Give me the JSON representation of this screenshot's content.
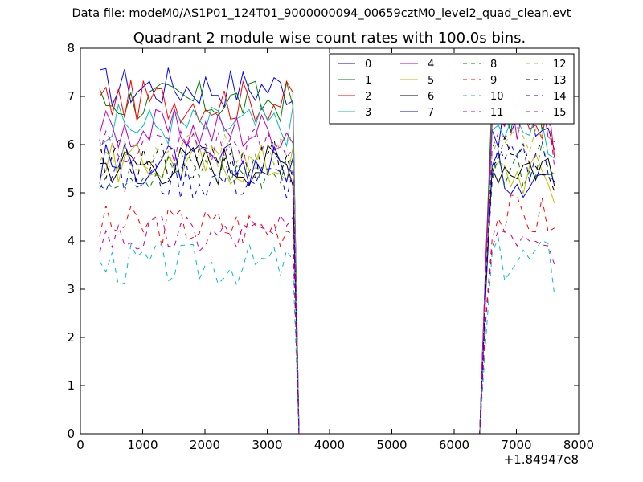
{
  "header": {
    "text": "Data file: modeM0/AS1P01_124T01_9000000094_00659cztM0_level2_quad_clean.evt"
  },
  "chart_data": {
    "type": "line",
    "title": "Quadrant 2 module wise count rates with 100.0s bins.",
    "xlabel": "",
    "ylabel": "",
    "xlim": [
      0,
      8000
    ],
    "ylim": [
      0,
      8
    ],
    "x_ticks": [
      "0",
      "1000",
      "2000",
      "3000",
      "4000",
      "5000",
      "6000",
      "7000",
      "8000"
    ],
    "y_ticks": [
      "0",
      "1",
      "2",
      "3",
      "4",
      "5",
      "6",
      "7",
      "8"
    ],
    "x_offset_label": "+1.84947e8",
    "grid": false,
    "legend_position": "top-right",
    "legend_columns": 4,
    "x": [
      [
        310,
        410,
        510,
        610,
        710,
        810,
        910,
        1010,
        1110,
        1210,
        1310,
        1410,
        1510,
        1610,
        1710,
        1810,
        1910,
        2010,
        2110,
        2210,
        2310,
        2410,
        2510,
        2610,
        2710,
        2810,
        2910,
        3010,
        3110,
        3210,
        3310,
        3410,
        3510
      ],
      [
        3610,
        6410
      ],
      [
        6510,
        6610,
        6710,
        6810,
        6910,
        7010,
        7110,
        7210,
        7310,
        7410,
        7510,
        7610
      ]
    ],
    "series": [
      {
        "name": "0",
        "color": "#0000ff",
        "dash": "solid",
        "base": [
          7.2,
          6.4
        ]
      },
      {
        "name": "1",
        "color": "#008000",
        "dash": "solid",
        "base": [
          6.9,
          6.7
        ]
      },
      {
        "name": "2",
        "color": "#ff0000",
        "dash": "solid",
        "base": [
          6.9,
          6.6
        ]
      },
      {
        "name": "3",
        "color": "#00bfbf",
        "dash": "solid",
        "base": [
          6.4,
          6.3
        ]
      },
      {
        "name": "4",
        "color": "#bf00bf",
        "dash": "solid",
        "base": [
          6.3,
          6.6
        ]
      },
      {
        "name": "5",
        "color": "#bfbf00",
        "dash": "solid",
        "base": [
          5.6,
          5.4
        ]
      },
      {
        "name": "6",
        "color": "#000000",
        "dash": "solid",
        "base": [
          5.6,
          5.6
        ]
      },
      {
        "name": "7",
        "color": "#0000ff",
        "dash": "solid",
        "base": [
          5.6,
          5.4
        ]
      },
      {
        "name": "8",
        "color": "#008000",
        "dash": "dashed",
        "base": [
          5.5,
          5.6
        ]
      },
      {
        "name": "9",
        "color": "#ff0000",
        "dash": "dashed",
        "base": [
          4.3,
          4.5
        ]
      },
      {
        "name": "10",
        "color": "#00bfbf",
        "dash": "dashed",
        "base": [
          3.5,
          3.6
        ]
      },
      {
        "name": "11",
        "color": "#bf00bf",
        "dash": "dashed",
        "base": [
          4.1,
          4.3
        ]
      },
      {
        "name": "12",
        "color": "#bfbf00",
        "dash": "dashed",
        "base": [
          5.9,
          6.0
        ]
      },
      {
        "name": "13",
        "color": "#000000",
        "dash": "dashed",
        "base": [
          5.7,
          5.8
        ]
      },
      {
        "name": "14",
        "color": "#0000ff",
        "dash": "dashed",
        "base": [
          5.3,
          5.6
        ]
      },
      {
        "name": "15",
        "color": "#bf00bf",
        "dash": "dashed",
        "base": [
          6.0,
          6.3
        ]
      }
    ],
    "gap_value": 0
  }
}
